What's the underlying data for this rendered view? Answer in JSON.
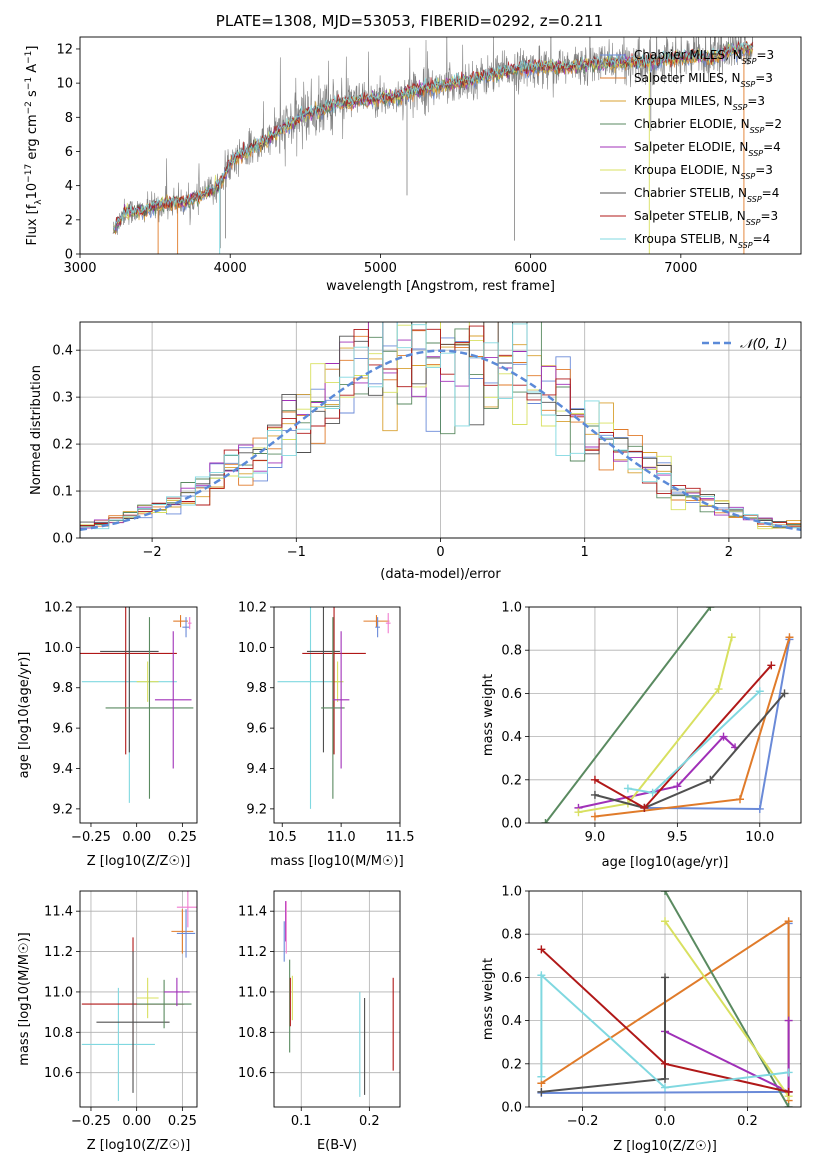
{
  "title": "PLATE=1308, MJD=53053, FIBERID=0292, z=0.211",
  "colors": {
    "Chabrier MILES": "#6a8ad8",
    "Salpeter MILES": "#e07b2a",
    "Kroupa MILES": "#d8a030",
    "Chabrier ELODIE": "#5a8a60",
    "Salpeter ELODIE": "#a030b8",
    "Kroupa ELODIE": "#d8e060",
    "Chabrier STELIB": "#505050",
    "Salpeter STELIB": "#b01818",
    "Kroupa STELIB": "#80d8e0",
    "data": "#808080",
    "extra": "#f07cd0"
  },
  "chart_data": [
    {
      "id": "spectrum",
      "type": "line",
      "xlabel": "wavelength [Angstrom, rest frame]",
      "ylabel": "Flux [f_λ 10^-17 erg cm^-2 s^-1 A^-1]",
      "xlim": [
        3000,
        7800
      ],
      "ylim": [
        0,
        12.7
      ],
      "xticks": [
        3000,
        4000,
        5000,
        6000,
        7000
      ],
      "yticks": [
        0,
        2,
        4,
        6,
        8,
        10,
        12
      ],
      "legend_position": "upper right",
      "legend": [
        {
          "text": "Chabrier MILES, N_SSP=3",
          "model": "Chabrier MILES"
        },
        {
          "text": "Salpeter MILES, N_SSP=3",
          "model": "Salpeter MILES"
        },
        {
          "text": "Kroupa MILES, N_SSP=3",
          "model": "Kroupa MILES"
        },
        {
          "text": "Chabrier ELODIE, N_SSP=2",
          "model": "Chabrier ELODIE"
        },
        {
          "text": "Salpeter ELODIE, N_SSP=4",
          "model": "Salpeter ELODIE"
        },
        {
          "text": "Kroupa ELODIE, N_SSP=3",
          "model": "Kroupa ELODIE"
        },
        {
          "text": "Chabrier STELIB, N_SSP=4",
          "model": "Chabrier STELIB"
        },
        {
          "text": "Salpeter STELIB, N_SSP=3",
          "model": "Salpeter STELIB"
        },
        {
          "text": "Kroupa STELIB, N_SSP=4",
          "model": "Kroupa STELIB"
        }
      ],
      "continuum_anchors": {
        "x": [
          3220,
          3300,
          3400,
          3450,
          3500,
          3600,
          3700,
          3800,
          3900,
          3950,
          4000,
          4100,
          4200,
          4300,
          4400,
          4500,
          4600,
          4700,
          4800,
          4900,
          5000,
          5100,
          5200,
          5300,
          5400,
          5500,
          5600,
          5700,
          5800,
          5900,
          6000,
          6100,
          6200,
          6300,
          6400,
          6500,
          6600,
          6700,
          6800,
          6900,
          7000,
          7100,
          7200,
          7300,
          7400,
          7500
        ],
        "y": [
          1.3,
          2.5,
          2.5,
          2.6,
          2.8,
          3.0,
          3.0,
          3.4,
          3.8,
          4.3,
          5.4,
          6.0,
          6.4,
          7.0,
          7.6,
          8.2,
          8.4,
          8.8,
          8.9,
          9.0,
          9.1,
          9.2,
          9.5,
          9.7,
          9.8,
          10.0,
          10.2,
          10.4,
          10.6,
          10.8,
          10.9,
          11.0,
          10.9,
          11.0,
          11.1,
          11.2,
          11.2,
          11.3,
          11.2,
          11.4,
          11.5,
          11.6,
          11.4,
          11.8,
          12.0,
          12.1
        ]
      }
    },
    {
      "id": "residuals",
      "type": "bar",
      "xlabel": "(data-model)/error",
      "ylabel": "Normed distribution",
      "xlim": [
        -2.5,
        2.5
      ],
      "ylim": [
        0,
        0.46
      ],
      "xticks": [
        -2,
        -1,
        0,
        1,
        2
      ],
      "yticks": [
        0.0,
        0.1,
        0.2,
        0.3,
        0.4
      ],
      "grid": true,
      "legend": [
        {
          "text": "𝒩(0, 1)"
        }
      ],
      "bins": 50
    },
    {
      "id": "age_vs_Z",
      "type": "scatter",
      "xlabel": "Z [log10(Z/Z☉)]",
      "ylabel": "age [log10(age/yr)]",
      "xlim": [
        -0.31,
        0.33
      ],
      "ylim": [
        9.13,
        10.2
      ],
      "xticks": [
        -0.25,
        0.0,
        0.25
      ],
      "yticks": [
        9.2,
        9.4,
        9.6,
        9.8,
        10.0,
        10.2
      ],
      "points": [
        {
          "model": "Kroupa STELIB",
          "x": -0.04,
          "xerr": 0.26,
          "y": 9.83,
          "yerr": 0.6
        },
        {
          "model": "Kroupa ELODIE",
          "x": 0.06,
          "xerr": 0.06,
          "y": 9.83,
          "yerr": 0.1
        },
        {
          "model": "Salpeter STELIB",
          "x": -0.06,
          "xerr": 0.28,
          "y": 9.97,
          "yerr": 0.5
        },
        {
          "model": "Chabrier STELIB",
          "x": -0.04,
          "xerr": 0.16,
          "y": 9.98,
          "yerr": 0.5
        },
        {
          "model": "Chabrier ELODIE",
          "x": 0.07,
          "xerr": 0.24,
          "y": 9.7,
          "yerr": 0.45
        },
        {
          "model": "Salpeter ELODIE",
          "x": 0.2,
          "xerr": 0.1,
          "y": 9.74,
          "yerr": 0.34
        },
        {
          "model": "Salpeter MILES",
          "x": 0.24,
          "xerr": 0.04,
          "y": 10.13,
          "yerr": 0.03
        },
        {
          "model": "Chabrier MILES",
          "x": 0.27,
          "xerr": 0.02,
          "y": 10.1,
          "yerr": 0.05
        },
        {
          "model": "extra",
          "x": 0.29,
          "xerr": 0.01,
          "y": 10.12,
          "yerr": 0.03
        }
      ]
    },
    {
      "id": "age_vs_mass",
      "type": "scatter",
      "xlabel": "mass [log10(M/M☉)]",
      "ylabel": "",
      "xlim": [
        10.43,
        11.5
      ],
      "ylim": [
        9.13,
        10.2
      ],
      "xticks": [
        10.5,
        11.0,
        11.5
      ],
      "yticks": [
        9.2,
        9.4,
        9.6,
        9.8,
        10.0,
        10.2
      ],
      "points": [
        {
          "model": "Kroupa STELIB",
          "x": 10.74,
          "xerr": 0.28,
          "y": 9.83,
          "yerr": 0.63
        },
        {
          "model": "Kroupa ELODIE",
          "x": 10.97,
          "xerr": 0.05,
          "y": 9.83,
          "yerr": 0.1
        },
        {
          "model": "Salpeter STELIB",
          "x": 10.94,
          "xerr": 0.27,
          "y": 9.97,
          "yerr": 0.5
        },
        {
          "model": "Chabrier STELIB",
          "x": 10.85,
          "xerr": 0.14,
          "y": 9.98,
          "yerr": 0.5
        },
        {
          "model": "Chabrier ELODIE",
          "x": 10.93,
          "xerr": 0.1,
          "y": 9.7,
          "yerr": 0.45
        },
        {
          "model": "Salpeter ELODIE",
          "x": 11.0,
          "xerr": 0.07,
          "y": 9.74,
          "yerr": 0.34
        },
        {
          "model": "Salpeter MILES",
          "x": 11.3,
          "xerr": 0.11,
          "y": 10.13,
          "yerr": 0.03
        },
        {
          "model": "Chabrier MILES",
          "x": 11.31,
          "xerr": 0.02,
          "y": 10.1,
          "yerr": 0.05
        },
        {
          "model": "extra",
          "x": 11.4,
          "xerr": 0.02,
          "y": 10.12,
          "yerr": 0.05
        }
      ]
    },
    {
      "id": "weight_vs_age",
      "type": "line",
      "xlabel": "age [log10(age/yr)]",
      "ylabel": "mass weight",
      "xlim": [
        8.6,
        10.25
      ],
      "ylim": [
        0,
        1.0
      ],
      "xticks": [
        9.0,
        9.5,
        10.0
      ],
      "yticks": [
        0.0,
        0.2,
        0.4,
        0.6,
        0.8,
        1.0
      ],
      "grid": true,
      "series": [
        {
          "model": "Chabrier MILES",
          "x": [
            9.3,
            10.0,
            10.18
          ],
          "y": [
            0.07,
            0.065,
            0.85
          ]
        },
        {
          "model": "Salpeter MILES",
          "x": [
            9.0,
            9.88,
            10.18
          ],
          "y": [
            0.03,
            0.11,
            0.86
          ]
        },
        {
          "model": "Chabrier ELODIE",
          "x": [
            8.7,
            9.7
          ],
          "y": [
            0.0,
            1.0
          ]
        },
        {
          "model": "Salpeter ELODIE",
          "x": [
            8.9,
            9.5,
            9.78,
            9.85
          ],
          "y": [
            0.07,
            0.17,
            0.4,
            0.35
          ]
        },
        {
          "model": "Kroupa ELODIE",
          "x": [
            8.9,
            9.2,
            9.75,
            9.83
          ],
          "y": [
            0.05,
            0.09,
            0.62,
            0.86
          ]
        },
        {
          "model": "Chabrier STELIB",
          "x": [
            9.0,
            9.3,
            9.7,
            10.15
          ],
          "y": [
            0.13,
            0.07,
            0.2,
            0.6
          ]
        },
        {
          "model": "Salpeter STELIB",
          "x": [
            9.0,
            9.3,
            10.07
          ],
          "y": [
            0.2,
            0.07,
            0.73
          ]
        },
        {
          "model": "Kroupa STELIB",
          "x": [
            9.2,
            9.35,
            10.0
          ],
          "y": [
            0.16,
            0.14,
            0.61
          ]
        }
      ]
    },
    {
      "id": "mass_vs_Z",
      "type": "scatter",
      "xlabel": "Z [log10(Z/Z☉)]",
      "ylabel": "mass [log10(M/M☉)]",
      "xlim": [
        -0.31,
        0.33
      ],
      "ylim": [
        10.43,
        11.5
      ],
      "xticks": [
        -0.25,
        0.0,
        0.25
      ],
      "yticks": [
        10.6,
        10.8,
        11.0,
        11.2,
        11.4
      ],
      "points": [
        {
          "model": "Kroupa STELIB",
          "x": -0.1,
          "xerr": 0.2,
          "y": 10.74,
          "yerr": 0.28
        },
        {
          "model": "Kroupa ELODIE",
          "x": 0.06,
          "xerr": 0.06,
          "y": 10.97,
          "yerr": 0.1
        },
        {
          "model": "Salpeter STELIB",
          "x": -0.02,
          "xerr": 0.28,
          "y": 10.94,
          "yerr": 0.33
        },
        {
          "model": "Chabrier STELIB",
          "x": -0.02,
          "xerr": 0.2,
          "y": 10.85,
          "yerr": 0.35
        },
        {
          "model": "Chabrier ELODIE",
          "x": 0.15,
          "xerr": 0.15,
          "y": 10.94,
          "yerr": 0.12
        },
        {
          "model": "Salpeter ELODIE",
          "x": 0.22,
          "xerr": 0.07,
          "y": 11.0,
          "yerr": 0.07
        },
        {
          "model": "Salpeter MILES",
          "x": 0.25,
          "xerr": 0.06,
          "y": 11.3,
          "yerr": 0.11
        },
        {
          "model": "Chabrier MILES",
          "x": 0.27,
          "xerr": 0.05,
          "y": 11.29,
          "yerr": 0.12
        },
        {
          "model": "extra",
          "x": 0.28,
          "xerr": 0.06,
          "y": 11.42,
          "yerr": 0.1
        }
      ]
    },
    {
      "id": "mass_vs_ebv",
      "type": "scatter",
      "xlabel": "E(B-V)",
      "ylabel": "",
      "xlim": [
        0.06,
        0.245
      ],
      "ylim": [
        10.43,
        11.5
      ],
      "xticks": [
        0.1,
        0.2
      ],
      "yticks": [
        10.6,
        10.8,
        11.0,
        11.2,
        11.4
      ],
      "points": [
        {
          "model": "Chabrier MILES",
          "x": 0.075,
          "y": 11.25,
          "yerr": 0.1
        },
        {
          "model": "Salpeter ELODIE",
          "x": 0.077,
          "y": 11.35,
          "yerr": 0.1
        },
        {
          "model": "extra",
          "x": 0.078,
          "y": 11.32,
          "yerr": 0.13
        },
        {
          "model": "Chabrier ELODIE",
          "x": 0.083,
          "y": 10.93,
          "yerr": 0.23
        },
        {
          "model": "Kroupa ELODIE",
          "x": 0.087,
          "y": 10.97,
          "yerr": 0.11
        },
        {
          "model": "Salpeter STELIB",
          "x": 0.084,
          "y": 10.95,
          "yerr": 0.12
        },
        {
          "model": "Kroupa STELIB",
          "x": 0.186,
          "y": 10.74,
          "yerr": 0.26
        },
        {
          "model": "Chabrier STELIB",
          "x": 0.193,
          "y": 10.73,
          "yerr": 0.24
        },
        {
          "model": "Salpeter STELIB",
          "x": 0.235,
          "y": 10.84,
          "yerr": 0.23
        }
      ]
    },
    {
      "id": "weight_vs_Z",
      "type": "line",
      "xlabel": "Z [log10(Z/Z☉)]",
      "ylabel": "mass weight",
      "xlim": [
        -0.33,
        0.33
      ],
      "ylim": [
        0,
        1.0
      ],
      "xticks": [
        -0.2,
        0.0,
        0.2
      ],
      "yticks": [
        0.0,
        0.2,
        0.4,
        0.6,
        0.8,
        1.0
      ],
      "grid": true,
      "series": [
        {
          "model": "Chabrier MILES",
          "x": [
            -0.3,
            0.3,
            0.3
          ],
          "y": [
            0.065,
            0.07,
            0.85
          ]
        },
        {
          "model": "Salpeter MILES",
          "x": [
            -0.3,
            0.3,
            0.3
          ],
          "y": [
            0.11,
            0.86,
            0.03
          ]
        },
        {
          "model": "Chabrier ELODIE",
          "x": [
            0.0,
            0.3
          ],
          "y": [
            1.0,
            0.0
          ]
        },
        {
          "model": "Salpeter ELODIE",
          "x": [
            0.0,
            0.3,
            0.3
          ],
          "y": [
            0.35,
            0.07,
            0.4
          ]
        },
        {
          "model": "Kroupa ELODIE",
          "x": [
            0.0,
            0.3
          ],
          "y": [
            0.86,
            0.05
          ]
        },
        {
          "model": "Chabrier STELIB",
          "x": [
            -0.3,
            0.0,
            0.0
          ],
          "y": [
            0.07,
            0.13,
            0.6
          ]
        },
        {
          "model": "Salpeter STELIB",
          "x": [
            -0.3,
            0.0,
            0.3
          ],
          "y": [
            0.73,
            0.2,
            0.07
          ]
        },
        {
          "model": "Kroupa STELIB",
          "x": [
            -0.3,
            -0.3,
            0.0,
            0.3
          ],
          "y": [
            0.14,
            0.61,
            0.09,
            0.16
          ]
        }
      ]
    }
  ]
}
